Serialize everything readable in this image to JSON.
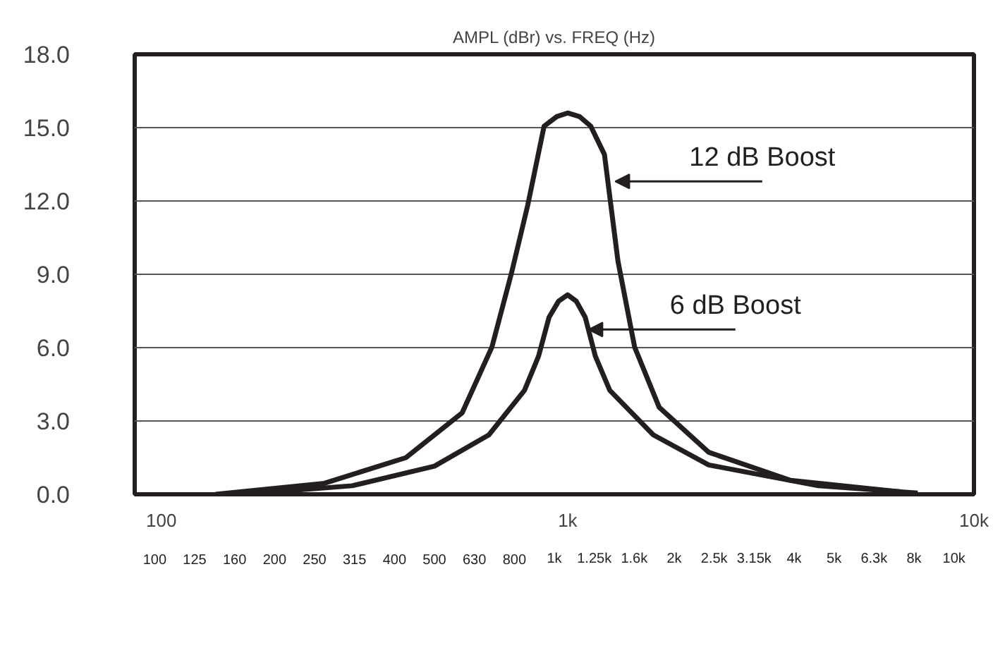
{
  "chart_data": {
    "type": "line",
    "title": "AMPL (dBr) vs. FREQ (Hz)",
    "log": "x",
    "grid": "y",
    "line_style": "solid",
    "xlim": [
      86,
      10000
    ],
    "xticks": [
      {
        "value": 100,
        "label": "100"
      },
      {
        "value": 1000,
        "label": "1k"
      },
      {
        "value": 10000,
        "label": "10k"
      }
    ],
    "ylim": [
      0,
      18
    ],
    "yticks": [
      {
        "value": 0,
        "label": "0.0"
      },
      {
        "value": 3,
        "label": "3.0"
      },
      {
        "value": 6,
        "label": "6.0"
      },
      {
        "value": 9,
        "label": "9.0"
      },
      {
        "value": 12,
        "label": "12.0"
      },
      {
        "value": 15,
        "label": "15.0"
      },
      {
        "value": 18,
        "label": "18.0"
      }
    ],
    "series": [
      {
        "color": "#231f20",
        "x": [
          136,
          252,
          400,
          550,
          651,
          727,
          798,
          875,
          940,
          1000,
          1070,
          1140,
          1232,
          1330,
          1462,
          1680,
          2224,
          3540,
          6610
        ],
        "values": [
          0,
          0.45,
          1.5,
          3.33,
          6.02,
          9.03,
          11.84,
          15.06,
          15.45,
          15.6,
          15.45,
          15.06,
          13.9,
          9.54,
          6.02,
          3.56,
          1.72,
          0.57,
          0.1
        ]
      },
      {
        "color": "#231f20",
        "x": [
          158,
          295,
          470,
          640,
          783,
          848,
          900,
          950,
          1000,
          1050,
          1105,
          1170,
          1270,
          1625,
          2224,
          4140,
          7270
        ],
        "values": [
          0,
          0.35,
          1.15,
          2.43,
          4.25,
          5.65,
          7.24,
          7.9,
          8.16,
          7.9,
          7.24,
          5.65,
          4.25,
          2.43,
          1.2,
          0.35,
          0.05
        ]
      }
    ],
    "annotations": [
      {
        "text": "12 dB Boost",
        "x": 1310,
        "y": 12.8
      },
      {
        "text": "6 dB Boost",
        "x": 1125,
        "y": 6.74
      },
      "100",
      "125",
      "160",
      "200",
      "250",
      "315",
      "400",
      "500",
      "630",
      "800",
      "1k",
      "1.25k",
      "1.6k",
      "2k",
      "2.5k",
      "3.15k",
      "4k",
      "5k",
      "6.3k",
      "8k",
      "10k"
    ]
  }
}
